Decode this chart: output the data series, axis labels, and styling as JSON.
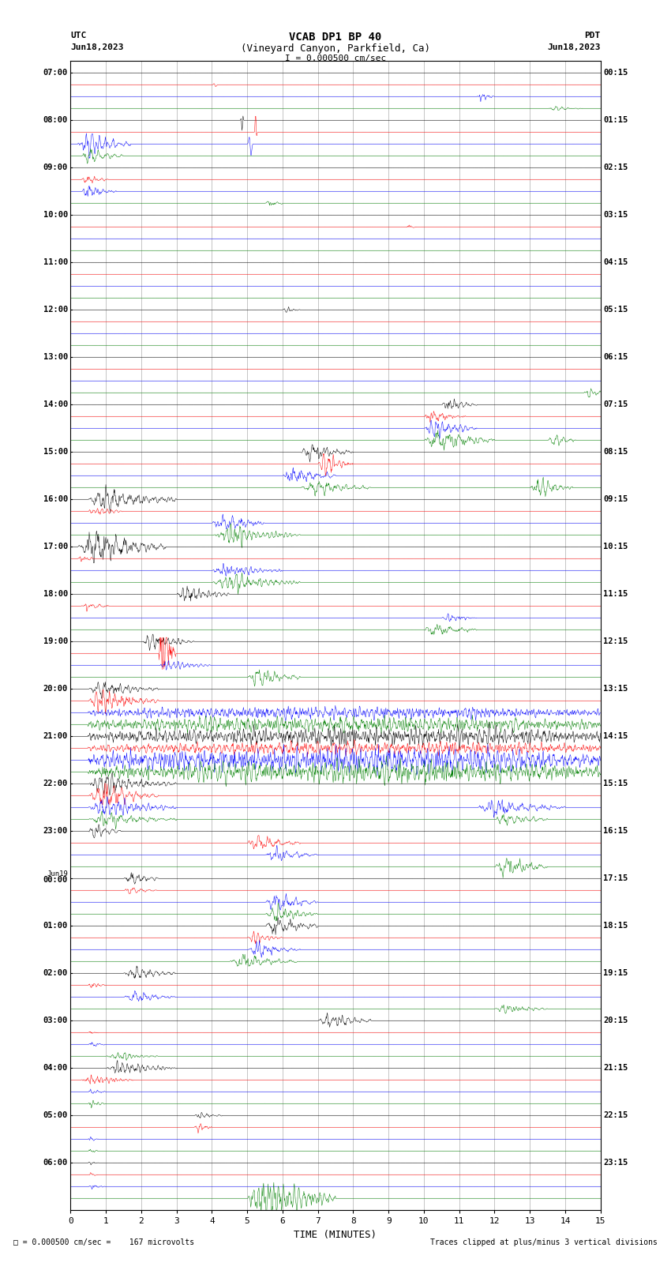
{
  "title_line1": "VCAB DP1 BP 40",
  "title_line2": "(Vineyard Canyon, Parkfield, Ca)",
  "scale_label": "I = 0.000500 cm/sec",
  "left_label_top": "UTC",
  "left_label_date": "Jun18,2023",
  "right_label_top": "PDT",
  "right_label_date": "Jun18,2023",
  "bottom_label": "TIME (MINUTES)",
  "bottom_note2": "Traces clipped at plus/minus 3 vertical divisions",
  "xlabel_ticks": [
    0,
    1,
    2,
    3,
    4,
    5,
    6,
    7,
    8,
    9,
    10,
    11,
    12,
    13,
    14,
    15
  ],
  "utc_times_left": [
    "07:00",
    "08:00",
    "09:00",
    "10:00",
    "11:00",
    "12:00",
    "13:00",
    "14:00",
    "15:00",
    "16:00",
    "17:00",
    "18:00",
    "19:00",
    "20:00",
    "21:00",
    "22:00",
    "23:00",
    "Jun19\n00:00",
    "01:00",
    "02:00",
    "03:00",
    "04:00",
    "05:00",
    "06:00"
  ],
  "pdt_times_right": [
    "00:15",
    "01:15",
    "02:15",
    "03:15",
    "04:15",
    "05:15",
    "06:15",
    "07:15",
    "08:15",
    "09:15",
    "10:15",
    "11:15",
    "12:15",
    "13:15",
    "14:15",
    "15:15",
    "16:15",
    "17:15",
    "18:15",
    "19:15",
    "20:15",
    "21:15",
    "22:15",
    "23:15"
  ],
  "n_rows": 96,
  "colors_cycle": [
    "black",
    "red",
    "blue",
    "green"
  ],
  "background_color": "white",
  "fig_width": 8.5,
  "fig_height": 16.13,
  "dpi": 100
}
